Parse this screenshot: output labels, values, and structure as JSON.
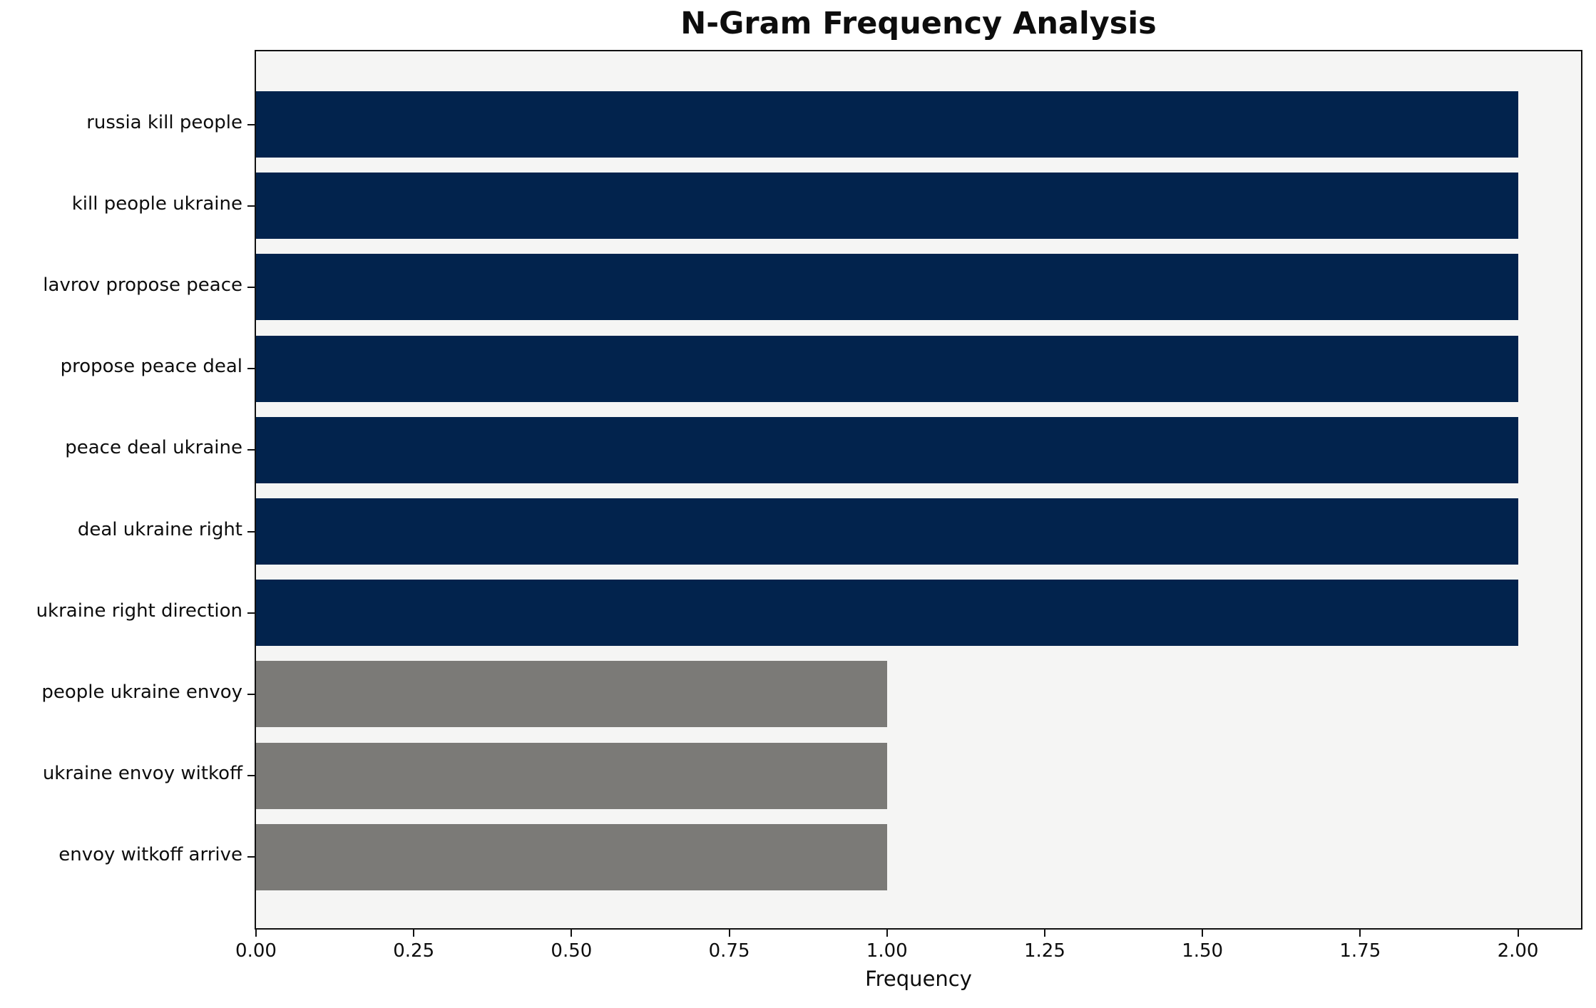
{
  "chart_data": {
    "type": "bar",
    "orientation": "horizontal",
    "title": "N-Gram Frequency Analysis",
    "xlabel": "Frequency",
    "ylabel": "",
    "categories": [
      "russia kill people",
      "kill people ukraine",
      "lavrov propose peace",
      "propose peace deal",
      "peace deal ukraine",
      "deal ukraine right",
      "ukraine right direction",
      "people ukraine envoy",
      "ukraine envoy witkoff",
      "envoy witkoff arrive"
    ],
    "values": [
      2,
      2,
      2,
      2,
      2,
      2,
      2,
      1,
      1,
      1
    ],
    "bar_colors": [
      "#02234d",
      "#02234d",
      "#02234d",
      "#02234d",
      "#02234d",
      "#02234d",
      "#02234d",
      "#7b7a77",
      "#7b7a77",
      "#7b7a77"
    ],
    "xlim": [
      0,
      2.1
    ],
    "xticks": [
      0,
      0.25,
      0.5,
      0.75,
      1.0,
      1.25,
      1.5,
      1.75,
      2.0
    ],
    "xtick_labels": [
      "0.00",
      "0.25",
      "0.50",
      "0.75",
      "1.00",
      "1.25",
      "1.50",
      "1.75",
      "2.00"
    ],
    "grid": false,
    "legend": null,
    "plot_background": "#f5f5f4",
    "figure_background": "#ffffff",
    "axis_color": "#111111"
  }
}
